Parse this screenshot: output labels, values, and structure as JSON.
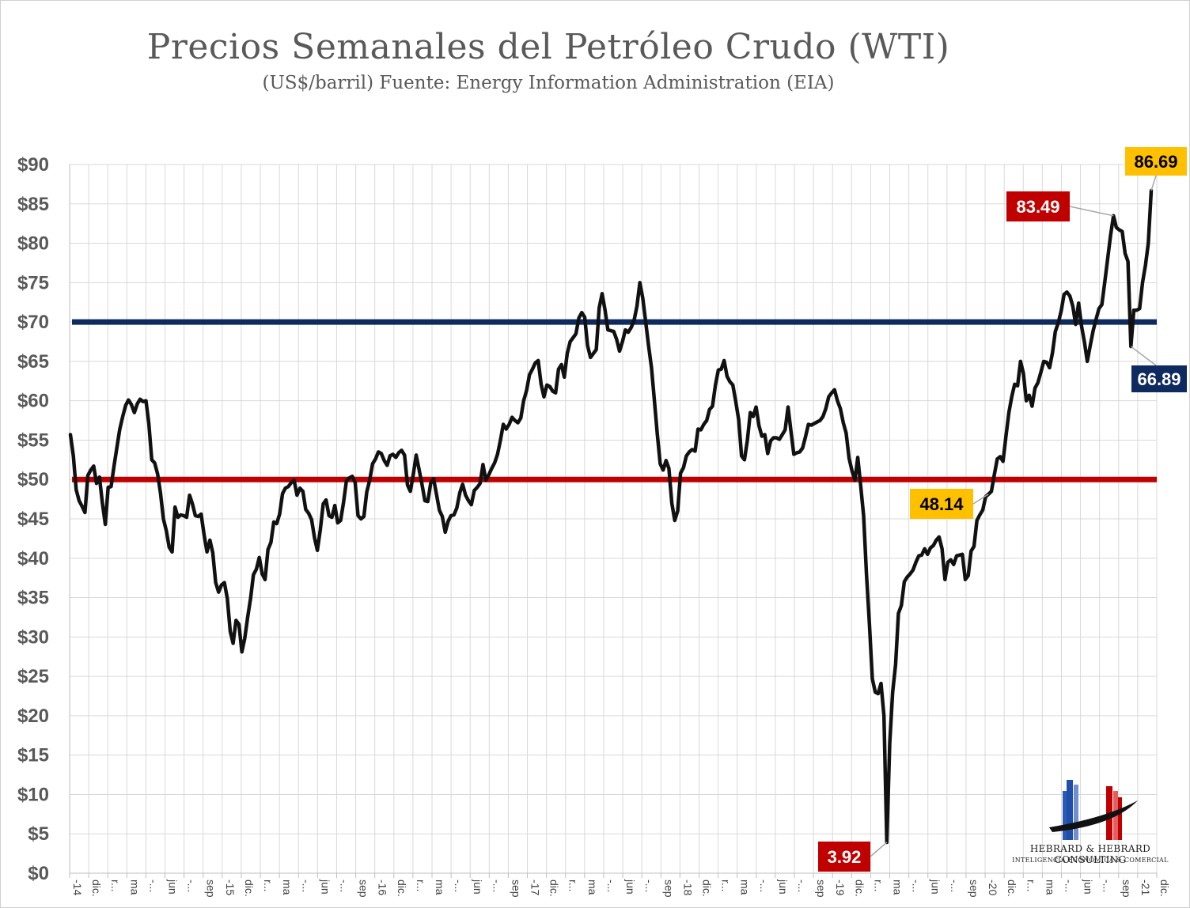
{
  "title": "Precios Semanales del Petróleo Crudo (WTI)",
  "subtitle": "(US$/barril)   Fuente: Energy Information Administration (EIA)",
  "colors": {
    "price_line": "#111111",
    "upper_reference": "#0f2a5f",
    "lower_reference": "#c00000",
    "callout_red": "#c00000",
    "callout_gold": "#ffc000",
    "callout_navy": "#0f2a5f",
    "grid": "#d9d9d9"
  },
  "logo": {
    "name": "HEBRARD & HEBRARD CONSULTING",
    "tagline": "INTELIGENCIA ECONÓMICA & COMERCIAL"
  },
  "chart_data": {
    "type": "line",
    "title": "Precios Semanales del Petróleo Crudo (WTI)",
    "subtitle": "(US$/barril)   Fuente: Energy Information Administration (EIA)",
    "xlabel": "",
    "ylabel": "",
    "ylim": [
      0,
      90
    ],
    "yticks": [
      "$0",
      "$5",
      "$10",
      "$15",
      "$20",
      "$25",
      "$30",
      "$35",
      "$40",
      "$45",
      "$50",
      "$55",
      "$60",
      "$65",
      "$70",
      "$75",
      "$80",
      "$85",
      "$90"
    ],
    "x_tick_labels": [
      "-14",
      "dic.",
      "r...",
      "ma",
      "-...",
      "jun",
      "-...",
      "sep",
      "-15",
      "dic.",
      "r...",
      "ma",
      "-...",
      "jun",
      "-...",
      "sep",
      "-16",
      "dic.",
      "r...",
      "ma",
      "-...",
      "jun",
      "-...",
      "sep",
      "-17",
      "dic.",
      "r...",
      "ma",
      "-...",
      "jun",
      "-...",
      "sep",
      "-18",
      "dic.",
      "r...",
      "ma",
      "-...",
      "jun",
      "-...",
      "sep",
      "-19",
      "dic.",
      "r...",
      "ma",
      "-...",
      "jun",
      "-...",
      "sep",
      "-20",
      "dic.",
      "r...",
      "ma",
      "-...",
      "jun",
      "-...",
      "sep",
      "-21",
      "dic."
    ],
    "grid": true,
    "legend": "none",
    "series": [
      {
        "values": [
          55.7,
          53.0,
          48.7,
          47.3,
          46.6,
          45.8,
          50.5,
          51.2,
          51.7,
          49.5,
          50.3,
          47.0,
          44.3,
          49.0,
          49.1,
          51.7,
          54.1,
          56.4,
          58.0,
          59.4,
          60.1,
          59.5,
          58.5,
          59.6,
          60.2,
          59.9,
          60.0,
          57.1,
          52.5,
          52.1,
          50.7,
          48.3,
          45.0,
          43.5,
          41.4,
          40.8,
          46.5,
          45.2,
          45.5,
          45.4,
          45.2,
          48.0,
          46.9,
          45.4,
          45.3,
          45.6,
          43.0,
          40.8,
          42.3,
          40.7,
          36.9,
          35.7,
          36.6,
          36.9,
          34.9,
          30.7,
          29.2,
          32.1,
          31.6,
          28.1,
          29.8,
          32.5,
          34.9,
          37.9,
          38.6,
          40.1,
          38.0,
          37.3,
          41.1,
          42.0,
          44.6,
          44.4,
          45.6,
          48.2,
          48.9,
          49.1,
          49.6,
          49.9,
          48.0,
          48.9,
          48.5,
          46.2,
          45.7,
          44.9,
          42.6,
          41.0,
          43.6,
          46.9,
          47.4,
          45.4,
          45.2,
          46.7,
          44.5,
          44.8,
          47.1,
          49.8,
          50.2,
          50.4,
          49.6,
          45.4,
          45.0,
          45.3,
          48.4,
          49.9,
          52.0,
          52.6,
          53.5,
          53.3,
          52.4,
          51.8,
          53.0,
          53.2,
          52.8,
          53.4,
          53.7,
          53.1,
          49.3,
          48.5,
          50.6,
          53.1,
          51.3,
          49.4,
          47.3,
          47.2,
          49.5,
          50.1,
          48.1,
          46.1,
          45.3,
          43.3,
          44.7,
          45.4,
          45.5,
          46.4,
          48.3,
          49.4,
          48.0,
          47.3,
          46.8,
          48.6,
          49.0,
          49.5,
          51.9,
          49.9,
          50.6,
          51.4,
          52.1,
          53.2,
          55.0,
          57.0,
          56.4,
          57.0,
          57.9,
          57.5,
          57.2,
          57.8,
          60.0,
          61.3,
          63.3,
          64.0,
          64.8,
          65.1,
          62.1,
          60.5,
          62.0,
          61.8,
          61.2,
          61.0,
          64.0,
          64.6,
          63.0,
          66.0,
          67.5,
          68.0,
          68.5,
          70.5,
          71.2,
          70.6,
          67.0,
          65.5,
          66.0,
          66.5,
          71.8,
          73.6,
          71.5,
          69.0,
          68.9,
          68.8,
          67.8,
          66.3,
          67.5,
          69.0,
          68.7,
          69.3,
          70.2,
          72.0,
          75.0,
          73.0,
          70.0,
          67.0,
          64.2,
          60.0,
          55.7,
          52.0,
          51.2,
          52.4,
          51.4,
          47.0,
          44.8,
          46.0,
          50.8,
          51.5,
          53.0,
          53.5,
          53.8,
          53.6,
          56.4,
          56.3,
          57.0,
          57.5,
          58.9,
          59.3,
          62.0,
          63.9,
          64.0,
          65.1,
          63.1,
          62.4,
          62.0,
          59.9,
          57.6,
          53.0,
          52.5,
          55.0,
          58.5,
          58.0,
          59.2,
          56.8,
          55.5,
          55.7,
          53.3,
          54.9,
          55.3,
          55.3,
          55.1,
          55.7,
          56.3,
          59.2,
          56.1,
          53.2,
          53.4,
          53.5,
          54.0,
          55.4,
          57.0,
          56.9,
          57.1,
          57.3,
          57.5,
          58.0,
          59.0,
          60.5,
          61.0,
          61.4,
          60.0,
          59.0,
          57.2,
          55.9,
          52.7,
          51.1,
          49.9,
          52.8,
          49.2,
          45.4,
          38.0,
          31.7,
          24.7,
          23.0,
          22.8,
          24.1,
          20.0,
          3.92,
          16.5,
          23.0,
          26.5,
          33.0,
          34.0,
          37.0,
          37.6,
          38.0,
          38.5,
          39.5,
          40.3,
          40.4,
          41.2,
          40.5,
          41.3,
          41.6,
          42.3,
          42.7,
          41.2,
          37.3,
          39.5,
          39.8,
          39.2,
          40.3,
          40.4,
          40.5,
          37.3,
          37.8,
          40.9,
          41.5,
          44.8,
          45.5,
          46.1,
          47.8,
          48.14,
          48.5,
          50.6,
          52.6,
          52.9,
          52.3,
          55.5,
          58.5,
          60.5,
          62.1,
          61.9,
          65.0,
          63.5,
          60.0,
          60.7,
          59.3,
          61.6,
          62.3,
          63.6,
          65.0,
          64.9,
          64.2,
          66.1,
          68.8,
          69.9,
          71.4,
          73.5,
          73.8,
          73.3,
          72.0,
          69.7,
          72.4,
          69.5,
          67.5,
          65.0,
          67.0,
          68.9,
          70.3,
          71.7,
          72.2,
          75.0,
          78.0,
          81.0,
          83.49,
          82.0,
          81.7,
          81.5,
          78.7,
          77.7,
          66.89,
          71.5,
          71.5,
          71.7,
          75.0,
          77.2,
          80.0,
          86.69
        ]
      }
    ],
    "reference_lines": [
      {
        "value": 70,
        "color": "#0f2a5f"
      },
      {
        "value": 50,
        "color": "#c00000"
      }
    ],
    "annotations": [
      {
        "text": "86.69",
        "value": 86.69,
        "style": "gold"
      },
      {
        "text": "83.49",
        "value": 83.49,
        "style": "red"
      },
      {
        "text": "66.89",
        "value": 66.89,
        "style": "navy"
      },
      {
        "text": "48.14",
        "value": 48.14,
        "style": "gold"
      },
      {
        "text": "3.92",
        "value": 3.92,
        "style": "red"
      }
    ]
  }
}
